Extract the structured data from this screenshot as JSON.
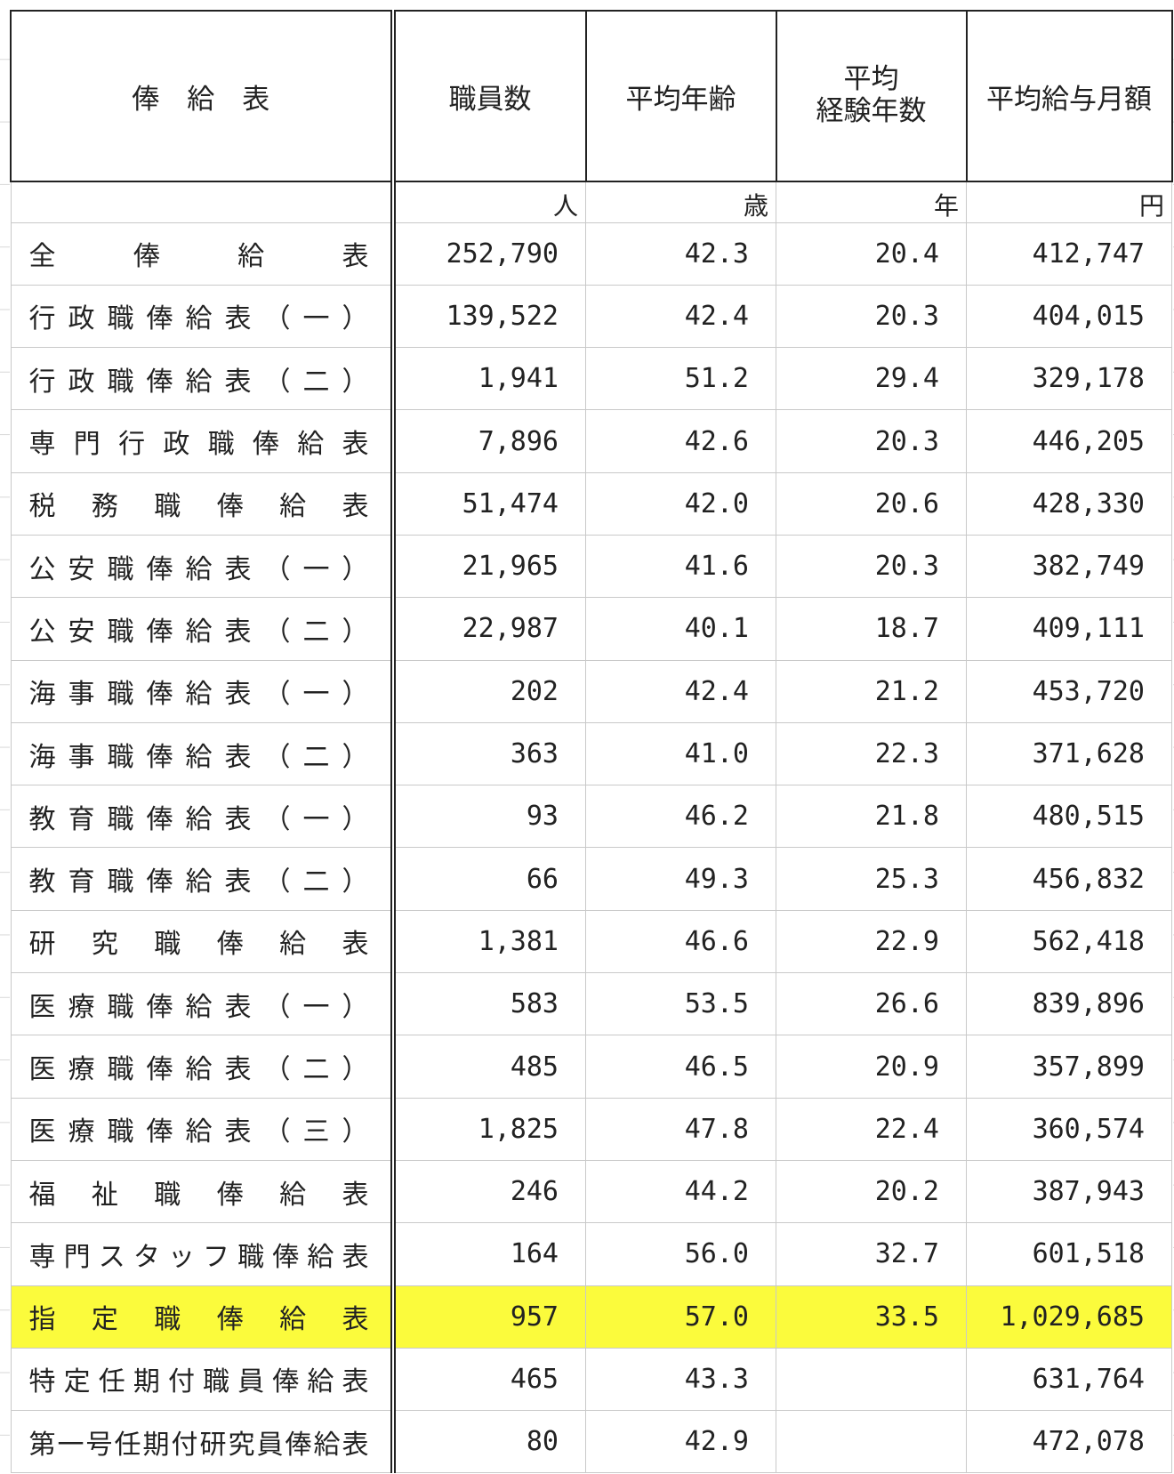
{
  "table": {
    "headers": [
      "俸　給　表",
      "職員数",
      "平均年齢",
      [
        "平均",
        "経験年数"
      ],
      "平均給与月額"
    ],
    "units": [
      "人",
      "歳",
      "年",
      "円"
    ],
    "highlight_color": "#fbfb3c",
    "rows": [
      {
        "name": "全俸給表",
        "staff": "252,790",
        "age": "42.3",
        "years": "20.4",
        "salary": "412,747"
      },
      {
        "name": "行政職俸給表（一）",
        "staff": "139,522",
        "age": "42.4",
        "years": "20.3",
        "salary": "404,015"
      },
      {
        "name": "行政職俸給表（二）",
        "staff": "1,941",
        "age": "51.2",
        "years": "29.4",
        "salary": "329,178"
      },
      {
        "name": "専門行政職俸給表",
        "staff": "7,896",
        "age": "42.6",
        "years": "20.3",
        "salary": "446,205"
      },
      {
        "name": "税務職俸給表",
        "staff": "51,474",
        "age": "42.0",
        "years": "20.6",
        "salary": "428,330"
      },
      {
        "name": "公安職俸給表（一）",
        "staff": "21,965",
        "age": "41.6",
        "years": "20.3",
        "salary": "382,749"
      },
      {
        "name": "公安職俸給表（二）",
        "staff": "22,987",
        "age": "40.1",
        "years": "18.7",
        "salary": "409,111"
      },
      {
        "name": "海事職俸給表（一）",
        "staff": "202",
        "age": "42.4",
        "years": "21.2",
        "salary": "453,720"
      },
      {
        "name": "海事職俸給表（二）",
        "staff": "363",
        "age": "41.0",
        "years": "22.3",
        "salary": "371,628"
      },
      {
        "name": "教育職俸給表（一）",
        "staff": "93",
        "age": "46.2",
        "years": "21.8",
        "salary": "480,515"
      },
      {
        "name": "教育職俸給表（二）",
        "staff": "66",
        "age": "49.3",
        "years": "25.3",
        "salary": "456,832"
      },
      {
        "name": "研究職俸給表",
        "staff": "1,381",
        "age": "46.6",
        "years": "22.9",
        "salary": "562,418"
      },
      {
        "name": "医療職俸給表（一）",
        "staff": "583",
        "age": "53.5",
        "years": "26.6",
        "salary": "839,896"
      },
      {
        "name": "医療職俸給表（二）",
        "staff": "485",
        "age": "46.5",
        "years": "20.9",
        "salary": "357,899"
      },
      {
        "name": "医療職俸給表（三）",
        "staff": "1,825",
        "age": "47.8",
        "years": "22.4",
        "salary": "360,574"
      },
      {
        "name": "福祉職俸給表",
        "staff": "246",
        "age": "44.2",
        "years": "20.2",
        "salary": "387,943"
      },
      {
        "name": "専門スタッフ職俸給表",
        "staff": "164",
        "age": "56.0",
        "years": "32.7",
        "salary": "601,518"
      },
      {
        "name": "指定職俸給表",
        "staff": "957",
        "age": "57.0",
        "years": "33.5",
        "salary": "1,029,685",
        "highlight": true
      },
      {
        "name": "特定任期付職員俸給表",
        "staff": "465",
        "age": "43.3",
        "years": null,
        "salary": "631,764"
      },
      {
        "name": "第一号任期付研究員俸給表",
        "staff": "80",
        "age": "42.9",
        "years": null,
        "salary": "472,078"
      }
    ]
  }
}
